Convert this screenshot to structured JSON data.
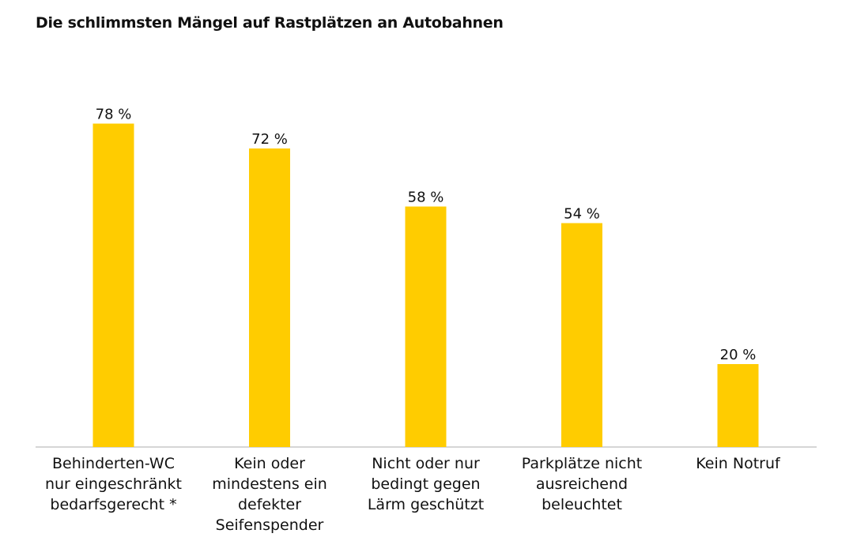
{
  "title": "Die schlimmsten Mängel auf Rastplätzen an Autobahnen",
  "colors": {
    "bar": "#FFCC00",
    "axis": "#c8c8c8",
    "text": "#111111"
  },
  "chart_data": {
    "type": "bar",
    "title": "Die schlimmsten Mängel auf Rastplätzen an Autobahnen",
    "categories": [
      [
        "Behinderten-WC",
        "nur eingeschränkt",
        "bedarfsgerecht *"
      ],
      [
        "Kein oder",
        "mindestens ein",
        "defekter",
        "Seifenspender"
      ],
      [
        "Nicht oder nur",
        "bedingt gegen",
        "Lärm geschützt"
      ],
      [
        "Parkplätze nicht",
        "ausreichend",
        "beleuchtet"
      ],
      [
        "Kein Notruf"
      ]
    ],
    "values": [
      78,
      72,
      58,
      54,
      20
    ],
    "value_labels": [
      "78 %",
      "72 %",
      "58 %",
      "54 %",
      "20 %"
    ],
    "unit": "%",
    "ylim": [
      0,
      100
    ],
    "grid": false,
    "legend": "none"
  }
}
